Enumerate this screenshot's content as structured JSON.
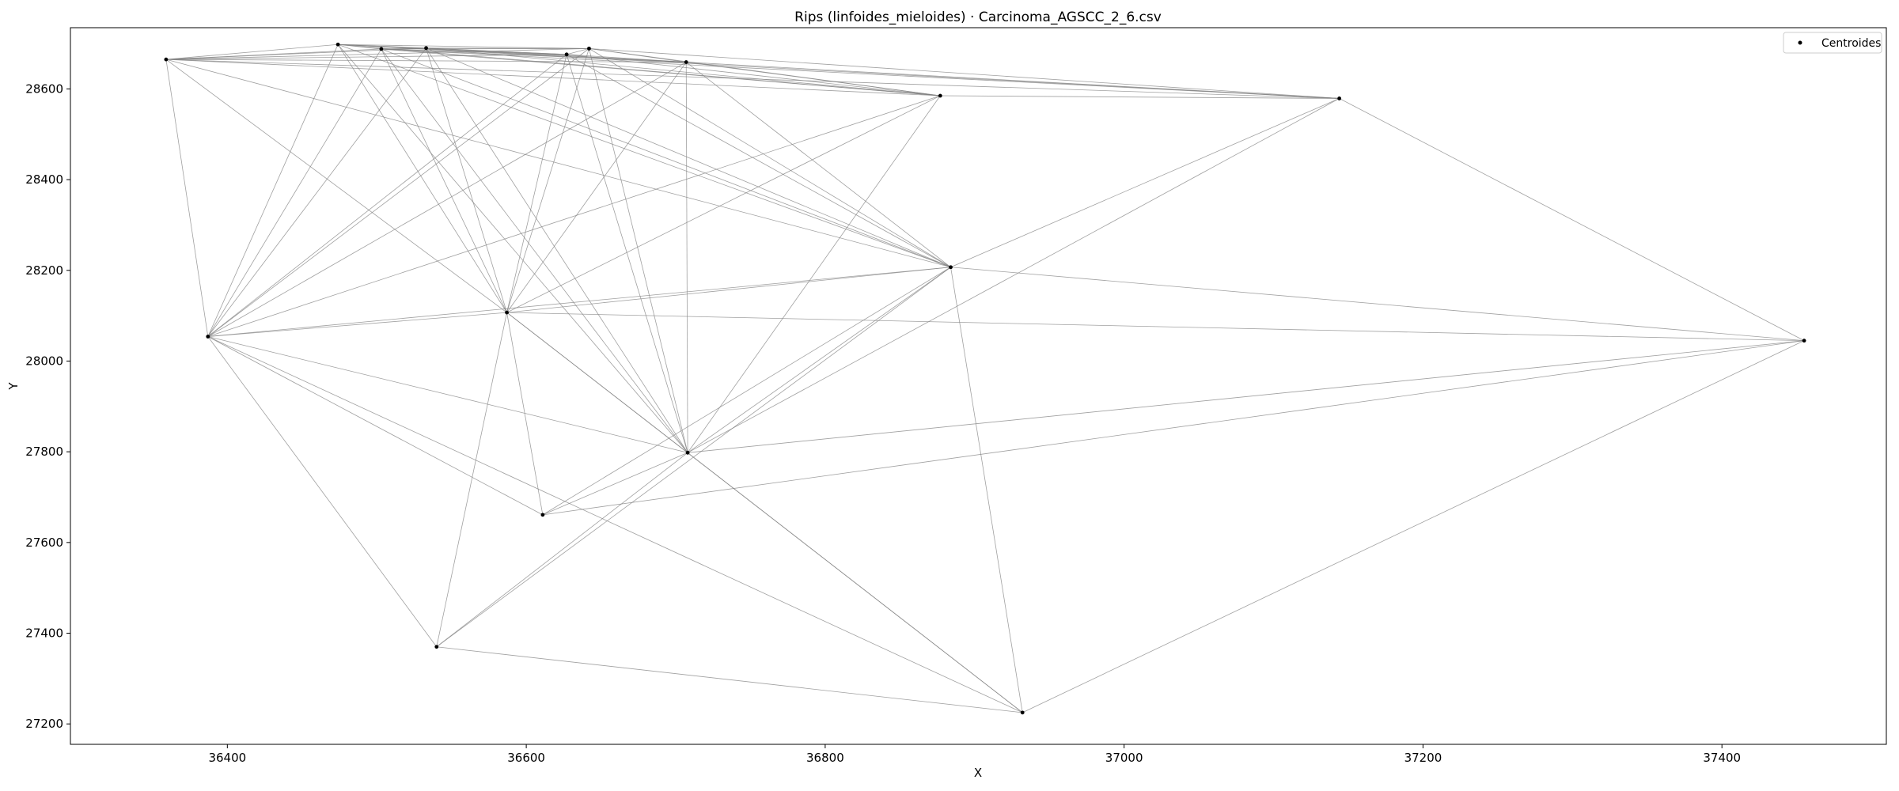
{
  "chart_data": {
    "type": "scatter",
    "title": "Rips (linfoides_mieloides) · Carcinoma_AGSCC_2_6.csv",
    "xlabel": "X",
    "ylabel": "Y",
    "xlim": [
      36295,
      37510
    ],
    "ylim": [
      27155,
      28735
    ],
    "xticks": [
      36400,
      36600,
      36800,
      37000,
      37200,
      37400
    ],
    "yticks": [
      27200,
      27400,
      27600,
      27800,
      28000,
      28200,
      28400,
      28600
    ],
    "legend": {
      "position": "top-right",
      "entries": [
        "Centroides"
      ]
    },
    "point_color": "#000000",
    "edge_color": "#808080",
    "points": [
      {
        "x": 36359,
        "y": 28665
      },
      {
        "x": 36387,
        "y": 28054
      },
      {
        "x": 36474,
        "y": 28698
      },
      {
        "x": 36503,
        "y": 28688
      },
      {
        "x": 36533,
        "y": 28690
      },
      {
        "x": 36587,
        "y": 28107
      },
      {
        "x": 36627,
        "y": 28676
      },
      {
        "x": 36642,
        "y": 28689
      },
      {
        "x": 36707,
        "y": 28659
      },
      {
        "x": 36708,
        "y": 27798
      },
      {
        "x": 36611,
        "y": 27661
      },
      {
        "x": 36540,
        "y": 27370
      },
      {
        "x": 36877,
        "y": 28585
      },
      {
        "x": 36884,
        "y": 28207
      },
      {
        "x": 36932,
        "y": 27225
      },
      {
        "x": 37144,
        "y": 28579
      },
      {
        "x": 37455,
        "y": 28045
      }
    ],
    "edges": [
      [
        0,
        1
      ],
      [
        0,
        2
      ],
      [
        0,
        3
      ],
      [
        0,
        4
      ],
      [
        0,
        5
      ],
      [
        0,
        6
      ],
      [
        0,
        7
      ],
      [
        0,
        8
      ],
      [
        0,
        12
      ],
      [
        0,
        13
      ],
      [
        0,
        15
      ],
      [
        1,
        2
      ],
      [
        1,
        3
      ],
      [
        1,
        4
      ],
      [
        1,
        5
      ],
      [
        1,
        6
      ],
      [
        1,
        7
      ],
      [
        1,
        8
      ],
      [
        1,
        9
      ],
      [
        1,
        10
      ],
      [
        1,
        11
      ],
      [
        1,
        12
      ],
      [
        1,
        13
      ],
      [
        1,
        14
      ],
      [
        2,
        3
      ],
      [
        2,
        4
      ],
      [
        2,
        5
      ],
      [
        2,
        6
      ],
      [
        2,
        7
      ],
      [
        2,
        8
      ],
      [
        2,
        9
      ],
      [
        2,
        12
      ],
      [
        2,
        13
      ],
      [
        2,
        15
      ],
      [
        3,
        4
      ],
      [
        3,
        5
      ],
      [
        3,
        6
      ],
      [
        3,
        7
      ],
      [
        3,
        8
      ],
      [
        3,
        9
      ],
      [
        3,
        12
      ],
      [
        3,
        13
      ],
      [
        3,
        15
      ],
      [
        4,
        5
      ],
      [
        4,
        6
      ],
      [
        4,
        7
      ],
      [
        4,
        8
      ],
      [
        4,
        9
      ],
      [
        4,
        12
      ],
      [
        4,
        13
      ],
      [
        5,
        6
      ],
      [
        5,
        7
      ],
      [
        5,
        8
      ],
      [
        5,
        9
      ],
      [
        5,
        10
      ],
      [
        5,
        11
      ],
      [
        5,
        12
      ],
      [
        5,
        13
      ],
      [
        5,
        14
      ],
      [
        5,
        16
      ],
      [
        6,
        7
      ],
      [
        6,
        8
      ],
      [
        6,
        9
      ],
      [
        6,
        12
      ],
      [
        6,
        13
      ],
      [
        7,
        8
      ],
      [
        7,
        9
      ],
      [
        7,
        12
      ],
      [
        7,
        13
      ],
      [
        7,
        15
      ],
      [
        8,
        9
      ],
      [
        8,
        12
      ],
      [
        8,
        13
      ],
      [
        8,
        15
      ],
      [
        9,
        10
      ],
      [
        9,
        11
      ],
      [
        9,
        12
      ],
      [
        9,
        13
      ],
      [
        9,
        14
      ],
      [
        9,
        15
      ],
      [
        9,
        16
      ],
      [
        10,
        13
      ],
      [
        10,
        16
      ],
      [
        11,
        13
      ],
      [
        11,
        14
      ],
      [
        12,
        15
      ],
      [
        13,
        14
      ],
      [
        13,
        15
      ],
      [
        13,
        16
      ],
      [
        14,
        16
      ],
      [
        15,
        16
      ]
    ]
  }
}
